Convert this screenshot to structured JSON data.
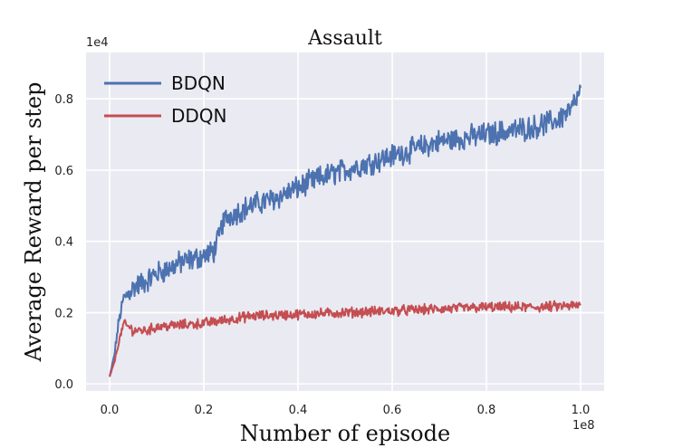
{
  "chart_data": {
    "type": "line",
    "title": "Assault",
    "xlabel": "Number of episode",
    "ylabel": "Average Reward per step",
    "x_multiplier": "1e8",
    "y_multiplier": "1e4",
    "xlim": [
      -0.05,
      1.05
    ],
    "ylim": [
      -0.02,
      0.93
    ],
    "x_ticks": [
      0.0,
      0.2,
      0.4,
      0.6,
      0.8,
      1.0
    ],
    "x_tick_labels": [
      "0.0",
      "0.2",
      "0.4",
      "0.6",
      "0.8",
      "1.0"
    ],
    "y_ticks": [
      0.0,
      0.2,
      0.4,
      0.6,
      0.8
    ],
    "y_tick_labels": [
      "0.0",
      "0.2",
      "0.4",
      "0.6",
      "0.8"
    ],
    "grid": true,
    "legend_position": "top-left",
    "background_color": "#eaeaf2",
    "series": [
      {
        "name": "BDQN",
        "color": "#4c72b0",
        "x": [
          0.0,
          0.01,
          0.02,
          0.03,
          0.05,
          0.08,
          0.1,
          0.12,
          0.15,
          0.18,
          0.2,
          0.22,
          0.23,
          0.24,
          0.25,
          0.3,
          0.35,
          0.4,
          0.45,
          0.5,
          0.55,
          0.6,
          0.65,
          0.7,
          0.75,
          0.8,
          0.85,
          0.9,
          0.95,
          0.98,
          1.0
        ],
        "y": [
          0.02,
          0.08,
          0.18,
          0.24,
          0.27,
          0.29,
          0.31,
          0.32,
          0.34,
          0.35,
          0.36,
          0.37,
          0.4,
          0.45,
          0.47,
          0.5,
          0.52,
          0.55,
          0.58,
          0.6,
          0.62,
          0.64,
          0.66,
          0.68,
          0.69,
          0.7,
          0.71,
          0.72,
          0.74,
          0.77,
          0.82
        ],
        "noise": 0.028
      },
      {
        "name": "DDQN",
        "color": "#c44e52",
        "x": [
          0.0,
          0.01,
          0.02,
          0.03,
          0.05,
          0.08,
          0.1,
          0.15,
          0.2,
          0.3,
          0.4,
          0.5,
          0.6,
          0.7,
          0.8,
          0.9,
          1.0
        ],
        "y": [
          0.02,
          0.06,
          0.12,
          0.17,
          0.15,
          0.15,
          0.16,
          0.165,
          0.17,
          0.19,
          0.195,
          0.2,
          0.205,
          0.21,
          0.215,
          0.215,
          0.22
        ],
        "noise": 0.012
      }
    ]
  }
}
